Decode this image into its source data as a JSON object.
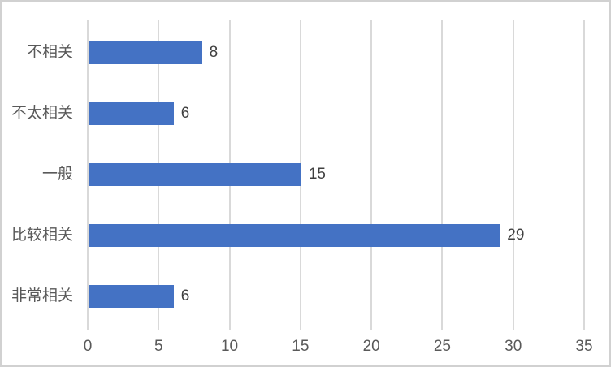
{
  "chart_data": {
    "type": "bar",
    "orientation": "horizontal",
    "title": "",
    "xlabel": "",
    "ylabel": "",
    "categories": [
      "不相关",
      "不太相关",
      "一般",
      "比较相关",
      "非常相关"
    ],
    "values": [
      8,
      6,
      15,
      29,
      6
    ],
    "data_labels": [
      "8",
      "6",
      "15",
      "29",
      "6"
    ],
    "x_ticks": [
      "0",
      "5",
      "10",
      "15",
      "20",
      "25",
      "30",
      "35"
    ],
    "x_tick_values": [
      0,
      5,
      10,
      15,
      20,
      25,
      30,
      35
    ],
    "xlim": [
      0,
      35
    ],
    "grid": "vertical-only",
    "legend": "none",
    "colors": {
      "bar": "#4472C4",
      "gridline": "#D9D9D9",
      "axis_text": "#595959",
      "data_label_text": "#404040",
      "frame_border": "#D1D1D1",
      "background": "#FFFFFF"
    }
  }
}
